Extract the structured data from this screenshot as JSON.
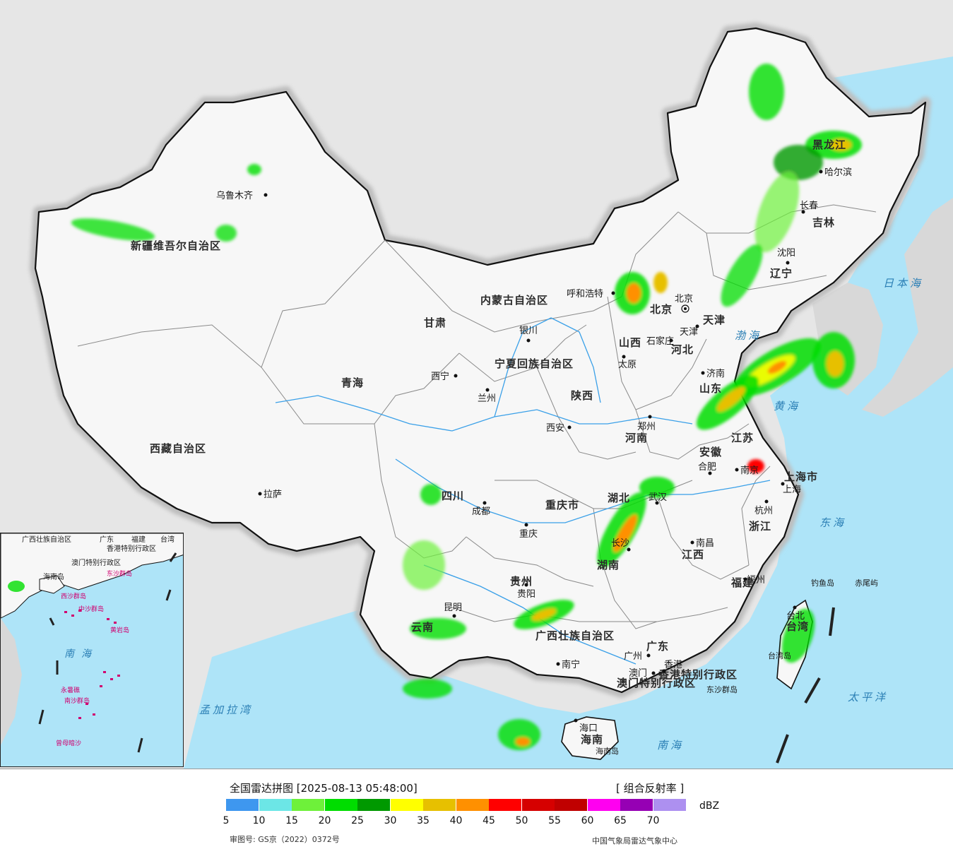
{
  "title": "全国雷达拼图 [2025-08-13 05:48:00]",
  "product": "[ 组合反射率 ]",
  "unit": "dBZ",
  "approval": "审图号: GS京（2022）0372号",
  "credit": "中国气象局雷达气象中心",
  "colors": {
    "sea": "#aee4f8",
    "land": "#f7f7f7",
    "border": "#111111",
    "halo": "#c9c9c9",
    "background": "#e6e6e6"
  },
  "legend": {
    "ticks": [
      "5",
      "10",
      "15",
      "20",
      "25",
      "30",
      "35",
      "40",
      "45",
      "50",
      "55",
      "60",
      "65",
      "70"
    ],
    "swatches": [
      "#3e97ef",
      "#6ce6e6",
      "#6ef13a",
      "#00dd00",
      "#009900",
      "#ffff00",
      "#e7c000",
      "#ff9000",
      "#ff0000",
      "#d60000",
      "#c00000",
      "#ff00f0",
      "#9600b4",
      "#ad90f0"
    ]
  },
  "labels": {
    "provinces": [
      "新疆维吾尔自治区",
      "西藏自治区",
      "青海",
      "四川",
      "云南",
      "甘肃",
      "内蒙古自治区",
      "黑龙江",
      "吉林",
      "辽宁",
      "河北",
      "山西",
      "山东",
      "河南",
      "陕西",
      "宁夏回族自治区",
      "江苏",
      "安徽",
      "湖北",
      "湖南",
      "江西",
      "浙江",
      "福建",
      "广东",
      "广西壮族自治区",
      "贵州",
      "重庆市",
      "上海市",
      "海南",
      "台湾",
      "香港特别行政区",
      "澳门特别行政区",
      "北京",
      "天津"
    ],
    "cities": [
      "乌鲁木齐",
      "拉萨",
      "西宁",
      "兰州",
      "银川",
      "呼和浩特",
      "北京",
      "天津",
      "石家庄",
      "太原",
      "济南",
      "郑州",
      "西安",
      "成都",
      "重庆",
      "昆明",
      "贵阳",
      "南宁",
      "长沙",
      "武汉",
      "合肥",
      "南京",
      "上海",
      "杭州",
      "南昌",
      "福州",
      "台北",
      "广州",
      "香港",
      "澳门",
      "海口",
      "沈阳",
      "长春",
      "哈尔滨"
    ],
    "seas": [
      "日本海",
      "渤海",
      "黄海",
      "东海",
      "南海",
      "太平洋",
      "孟加拉湾",
      "钓鱼岛",
      "赤尾屿",
      "台湾岛",
      "东沙群岛",
      "海南岛"
    ],
    "inset": [
      "广西壮族自治区",
      "广东",
      "福建",
      "台湾",
      "香港特别行政区",
      "澳门特别行政区",
      "海南岛",
      "西沙群岛",
      "中沙群岛",
      "黄岩岛",
      "南海",
      "永暑礁",
      "南沙群岛",
      "曾母暗沙",
      "东沙群岛"
    ]
  }
}
